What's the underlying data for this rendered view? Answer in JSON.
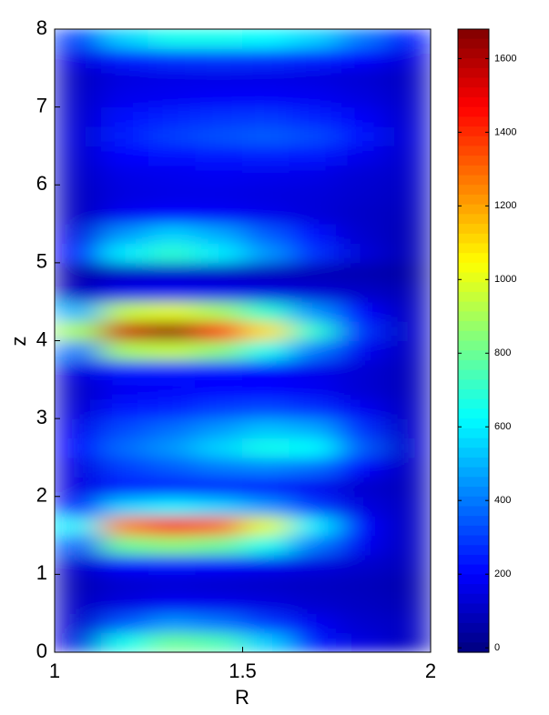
{
  "chart_data": {
    "type": "heatmap",
    "xlabel": "R",
    "ylabel": "z",
    "x": [
      1.0625,
      1.1875,
      1.3125,
      1.4375,
      1.5625,
      1.6875,
      1.8125,
      1.9375
    ],
    "y": [
      0.125,
      0.375,
      0.625,
      0.875,
      1.125,
      1.375,
      1.625,
      1.875,
      2.125,
      2.375,
      2.625,
      2.875,
      3.125,
      3.375,
      3.625,
      3.875,
      4.125,
      4.375,
      4.625,
      4.875,
      5.125,
      5.375,
      5.625,
      5.875,
      6.125,
      6.375,
      6.625,
      6.875,
      7.125,
      7.375,
      7.625,
      7.875
    ],
    "values": [
      [
        150,
        650,
        800,
        750,
        550,
        250,
        150,
        100
      ],
      [
        120,
        350,
        450,
        400,
        300,
        180,
        120,
        100
      ],
      [
        100,
        150,
        180,
        170,
        150,
        120,
        100,
        80
      ],
      [
        80,
        120,
        130,
        120,
        110,
        100,
        90,
        70
      ],
      [
        120,
        200,
        220,
        200,
        180,
        150,
        120,
        90
      ],
      [
        350,
        800,
        850,
        800,
        650,
        400,
        180,
        100
      ],
      [
        600,
        1250,
        1400,
        1300,
        1000,
        600,
        200,
        100
      ],
      [
        250,
        550,
        600,
        550,
        450,
        300,
        150,
        100
      ],
      [
        150,
        250,
        250,
        250,
        230,
        180,
        120,
        90
      ],
      [
        150,
        300,
        350,
        400,
        420,
        380,
        200,
        100
      ],
      [
        200,
        380,
        450,
        550,
        650,
        620,
        350,
        120
      ],
      [
        170,
        320,
        380,
        450,
        520,
        480,
        280,
        110
      ],
      [
        130,
        230,
        260,
        300,
        320,
        280,
        180,
        100
      ],
      [
        110,
        180,
        190,
        200,
        200,
        180,
        130,
        90
      ],
      [
        150,
        230,
        230,
        220,
        200,
        170,
        130,
        90
      ],
      [
        400,
        900,
        950,
        850,
        650,
        400,
        180,
        100
      ],
      [
        900,
        1550,
        1650,
        1450,
        1100,
        700,
        280,
        110
      ],
      [
        500,
        950,
        1000,
        900,
        700,
        450,
        200,
        100
      ],
      [
        100,
        170,
        180,
        170,
        150,
        130,
        110,
        80
      ],
      [
        60,
        100,
        110,
        100,
        90,
        80,
        70,
        50
      ],
      [
        200,
        600,
        700,
        600,
        450,
        280,
        140,
        80
      ],
      [
        150,
        450,
        550,
        480,
        350,
        220,
        120,
        80
      ],
      [
        100,
        180,
        200,
        190,
        170,
        140,
        110,
        90
      ],
      [
        100,
        150,
        160,
        160,
        150,
        140,
        120,
        100
      ],
      [
        110,
        160,
        170,
        180,
        170,
        160,
        130,
        110
      ],
      [
        120,
        200,
        220,
        240,
        250,
        230,
        170,
        120
      ],
      [
        130,
        250,
        300,
        330,
        350,
        320,
        230,
        130
      ],
      [
        120,
        220,
        260,
        280,
        290,
        260,
        190,
        120
      ],
      [
        110,
        170,
        180,
        190,
        190,
        180,
        150,
        110
      ],
      [
        100,
        150,
        160,
        160,
        160,
        150,
        130,
        100
      ],
      [
        150,
        250,
        280,
        290,
        280,
        260,
        200,
        140
      ],
      [
        300,
        550,
        650,
        650,
        620,
        550,
        400,
        250
      ]
    ],
    "xlim": [
      1,
      2
    ],
    "xticks": [
      1,
      1.5,
      2
    ],
    "ylim": [
      0,
      8
    ],
    "yticks": [
      0,
      1,
      2,
      3,
      4,
      5,
      6,
      7,
      8
    ],
    "colormap": "jet",
    "clim": [
      -12,
      1680
    ],
    "cticks": [
      0,
      200,
      400,
      600,
      800,
      1000,
      1200,
      1400,
      1600
    ]
  }
}
